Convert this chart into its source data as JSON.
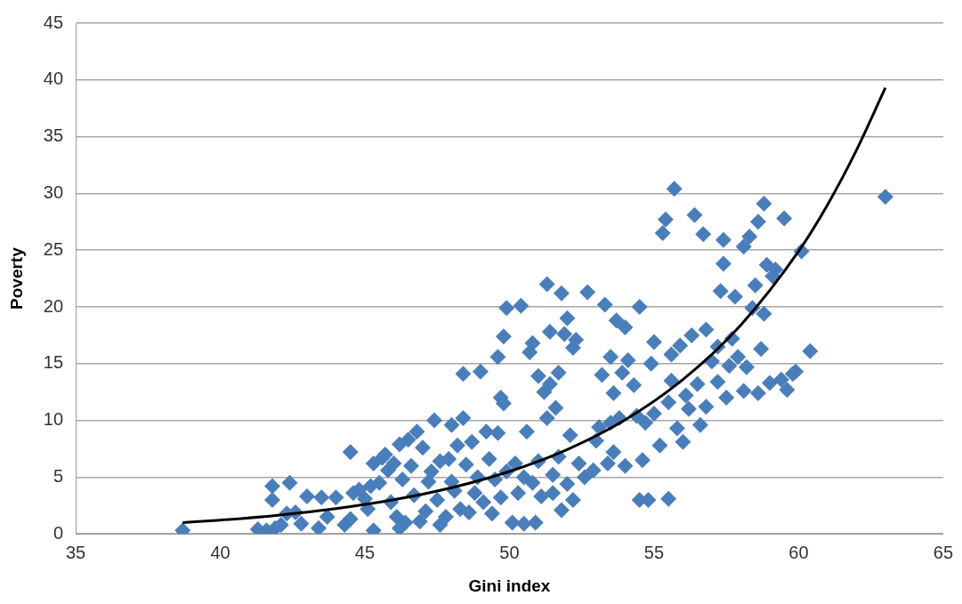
{
  "chart_data": {
    "type": "scatter",
    "xlabel": "Gini index",
    "ylabel": "Poverty",
    "xlim": [
      35,
      65
    ],
    "xticks": [
      35,
      40,
      45,
      50,
      55,
      60,
      65
    ],
    "ylim": [
      0,
      45
    ],
    "yticks": [
      0,
      5,
      10,
      15,
      20,
      25,
      30,
      35,
      40,
      45
    ],
    "grid": "y",
    "marker": "diamond",
    "series": [
      {
        "color": "#4a7ebb",
        "x": [
          38.7,
          41.3,
          41.6,
          41.8,
          41.8,
          41.9,
          42.1,
          42.3,
          42.4,
          42.6,
          42.8,
          43,
          43.4,
          43.5,
          43.7,
          44,
          44.3,
          44.5,
          44.5,
          44.6,
          44.8,
          45,
          45.2,
          45.3,
          45.3,
          45.5,
          45.6,
          45.7,
          45.8,
          45.9,
          46,
          46.1,
          46.2,
          46.2,
          46.3,
          46.4,
          46.5,
          46.6,
          46.8,
          46.9,
          47,
          47.1,
          47.2,
          47.3,
          47.4,
          47.5,
          47.6,
          47.6,
          47.8,
          47.9,
          48,
          48.1,
          48.2,
          48.3,
          48.4,
          48.4,
          48.5,
          48.6,
          48.7,
          48.8,
          48.9,
          49,
          49.1,
          49.2,
          49.3,
          49.4,
          49.5,
          49.6,
          49.6,
          49.7,
          49.8,
          49.8,
          49.9,
          49.9,
          50.1,
          50.2,
          50.3,
          50.4,
          50.5,
          50.6,
          50.7,
          50.8,
          50.8,
          50.9,
          51,
          51,
          51.1,
          51.2,
          51.3,
          51.3,
          51.4,
          51.4,
          51.5,
          51.6,
          51.7,
          51.7,
          51.8,
          51.8,
          51.9,
          52,
          52,
          52.1,
          52.2,
          52.3,
          52.4,
          52.6,
          52.7,
          52.9,
          53.1,
          53.2,
          53.3,
          53.4,
          53.5,
          53.6,
          53.6,
          53.7,
          53.8,
          53.9,
          54,
          54,
          54.1,
          54.3,
          54.4,
          54.5,
          54.5,
          54.6,
          54.7,
          54.8,
          54.9,
          55,
          55,
          55.2,
          55.3,
          55.4,
          55.5,
          55.5,
          55.6,
          55.7,
          55.8,
          55.9,
          56,
          56.1,
          56.3,
          56.4,
          56.5,
          56.6,
          56.7,
          56.8,
          56.8,
          57,
          57.2,
          57.3,
          57.4,
          57.4,
          57.5,
          57.6,
          57.7,
          57.8,
          57.9,
          58.1,
          58.1,
          58.2,
          58.3,
          58.4,
          58.5,
          58.6,
          58.6,
          58.7,
          58.8,
          58.8,
          58.9,
          59,
          59.1,
          59.2,
          59.4,
          59.5,
          59.6,
          59.8,
          59.9,
          60.1,
          60.4,
          63,
          45.1,
          46.7,
          48,
          49.7,
          50.5,
          51.5,
          52.2,
          53,
          53.5,
          55.6,
          56.2,
          57.2
        ],
        "values": [
          0.3,
          0.4,
          0.3,
          4.2,
          3.0,
          0.5,
          0.8,
          1.8,
          4.5,
          1.9,
          0.9,
          3.3,
          0.5,
          3.2,
          1.5,
          3.2,
          0.8,
          7.2,
          1.3,
          3.6,
          3.9,
          3.1,
          4.2,
          0.3,
          6.2,
          4.5,
          6.7,
          7.0,
          5.6,
          2.8,
          6.2,
          1.5,
          7.9,
          0.5,
          4.8,
          1.0,
          8.3,
          6.0,
          9.0,
          1.1,
          7.6,
          2.0,
          4.6,
          5.5,
          10.0,
          3.0,
          6.4,
          0.8,
          1.5,
          6.6,
          9.6,
          3.8,
          7.8,
          2.2,
          10.2,
          14.1,
          6.1,
          1.9,
          8.1,
          3.6,
          5.0,
          14.3,
          2.8,
          9.0,
          6.6,
          1.8,
          4.8,
          8.9,
          15.6,
          12.0,
          11.5,
          17.4,
          19.9,
          5.5,
          1.0,
          6.2,
          3.6,
          20.1,
          0.9,
          9.0,
          16.0,
          16.8,
          4.5,
          1.0,
          6.4,
          13.9,
          3.3,
          12.5,
          10.2,
          22.0,
          17.8,
          13.2,
          3.6,
          11.1,
          14.2,
          6.8,
          21.2,
          2.1,
          17.6,
          4.4,
          19.0,
          8.7,
          16.4,
          17.1,
          6.2,
          5.0,
          21.3,
          5.6,
          9.4,
          14.0,
          20.2,
          6.2,
          15.6,
          12.4,
          7.2,
          18.8,
          10.2,
          14.2,
          18.2,
          6.0,
          15.3,
          13.1,
          10.4,
          20.0,
          3.0,
          6.5,
          9.8,
          3.0,
          15.0,
          16.9,
          10.6,
          7.8,
          26.5,
          27.7,
          3.1,
          11.6,
          15.8,
          30.4,
          9.3,
          16.6,
          8.1,
          12.2,
          17.5,
          28.1,
          13.2,
          9.6,
          26.4,
          11.2,
          18.0,
          15.2,
          13.4,
          21.4,
          23.8,
          25.9,
          12.0,
          14.8,
          17.2,
          20.9,
          15.6,
          25.3,
          12.6,
          14.7,
          26.2,
          19.9,
          21.9,
          12.4,
          27.5,
          16.3,
          29.1,
          19.4,
          23.7,
          13.3,
          22.7,
          23.3,
          13.6,
          27.8,
          12.7,
          14.1,
          14.3,
          24.9,
          16.1,
          29.7,
          2.2,
          3.4,
          4.6,
          3.2,
          5.0,
          5.2,
          3.0,
          8.2,
          9.8,
          13.5,
          11.0,
          16.5
        ]
      },
      {
        "type": "line",
        "color": "#000000",
        "marker": "none",
        "x": [
          38.7,
          40,
          42,
          44,
          46,
          48,
          50,
          52,
          54,
          56,
          58,
          60,
          61,
          62,
          63
        ],
        "values": [
          1.0,
          1.22,
          1.65,
          2.23,
          3.01,
          4.07,
          5.5,
          7.43,
          10.04,
          13.6,
          18.4,
          24.9,
          29.0,
          33.8,
          39.3
        ]
      }
    ]
  }
}
